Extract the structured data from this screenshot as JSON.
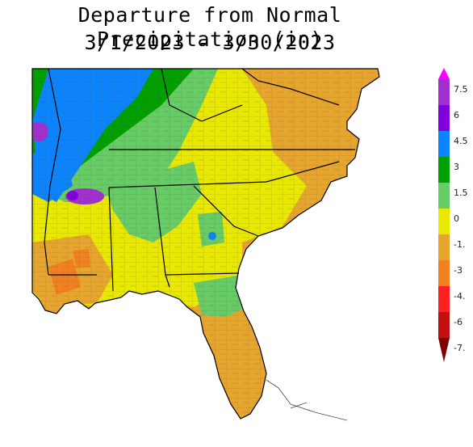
{
  "title_line1": "Departure from Normal Precipitation (in)",
  "title_line2": "3/1/2023 - 3/30/2023",
  "legend": {
    "labels": [
      "7.5",
      "6",
      "4.5",
      "3",
      "1.5",
      "0",
      "-1.",
      "-3",
      "-4.",
      "-6",
      "-7."
    ],
    "colors": [
      "#ff00ff",
      "#a030d0",
      "#8000e0",
      "#0a84ff",
      "#00a000",
      "#66cc66",
      "#e8e800",
      "#e6a52d",
      "#f08020",
      "#ff2020",
      "#c01010",
      "#800000"
    ]
  },
  "map": {
    "region": "Southeastern United States",
    "fill_colors": {
      "dry": "#e6a52d",
      "slightly_dry": "#e8e800",
      "near_normal": "#66cc66",
      "wet": "#00a000",
      "very_wet": "#0a84ff",
      "extreme_wet": "#a030d0",
      "very_dry": "#f08020"
    }
  }
}
